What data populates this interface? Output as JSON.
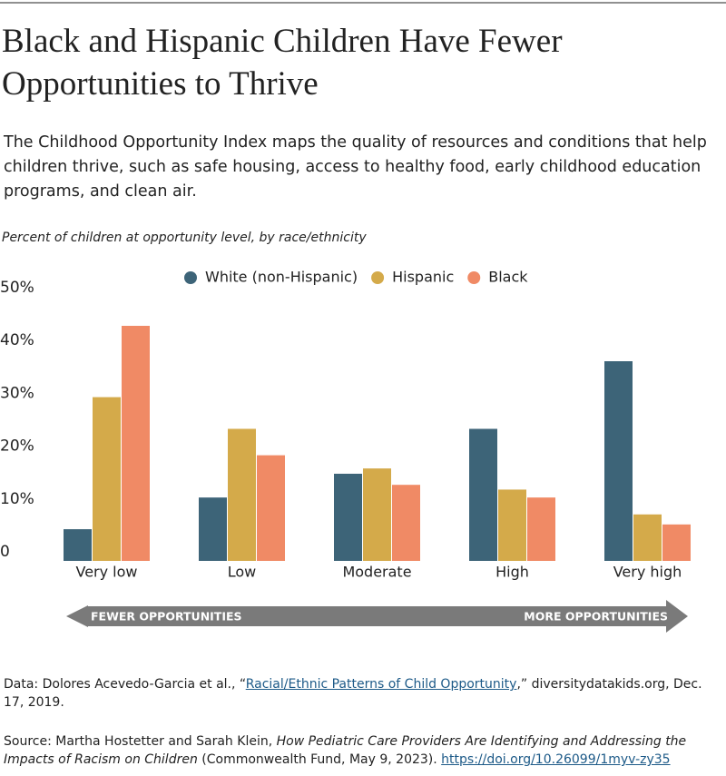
{
  "chart_data": {
    "type": "bar",
    "title": "Black and Hispanic Children Have Fewer Opportunities to Thrive",
    "subtitle": "The Childhood Opportunity Index maps the quality of resources and conditions that help children thrive, such as safe housing, access to healthy food, early childhood education programs, and clean air.",
    "y_label": "Percent of children at opportunity level, by race/ethnicity",
    "categories": [
      "Very low",
      "Low",
      "Moderate",
      "High",
      "Very high"
    ],
    "series": [
      {
        "name": "White (non-Hispanic)",
        "color": "#3d6478",
        "values": [
          6,
          12,
          16.5,
          25,
          37.8
        ]
      },
      {
        "name": "Hispanic",
        "color": "#d4aa4a",
        "values": [
          31,
          25,
          17.5,
          13.5,
          8.8
        ]
      },
      {
        "name": "Black",
        "color": "#f08a65",
        "values": [
          44.5,
          20,
          14.4,
          12,
          6.9
        ]
      }
    ],
    "ylim": [
      0,
      50
    ],
    "yticks": [
      0,
      {
        "value": 10,
        "label": "10%"
      },
      {
        "value": 20,
        "label": "20%"
      },
      {
        "value": 30,
        "label": "30%"
      },
      {
        "value": 40,
        "label": "40%"
      },
      {
        "value": 50,
        "label": "50%"
      }
    ],
    "grid": false,
    "arrow_left": "FEWER OPPORTUNITIES",
    "arrow_right": "MORE OPPORTUNITIES",
    "data_note": {
      "prefix": "Data: Dolores Acevedo-Garcia et al., “",
      "link": "Racial/Ethnic Patterns of Child Opportunity",
      "suffix": ",” diversitydatakids.org, Dec. 17, 2019."
    },
    "source_note": {
      "prefix": "Source: Martha Hostetter and Sarah Klein, ",
      "title": "How Pediatric Care Providers Are Identifying and Addressing the Impacts of Racism on Children",
      "suffix": " (Commonwealth Fund, May 9, 2023). ",
      "link": "https://doi.org/10.26099/1myv-zy35"
    }
  }
}
